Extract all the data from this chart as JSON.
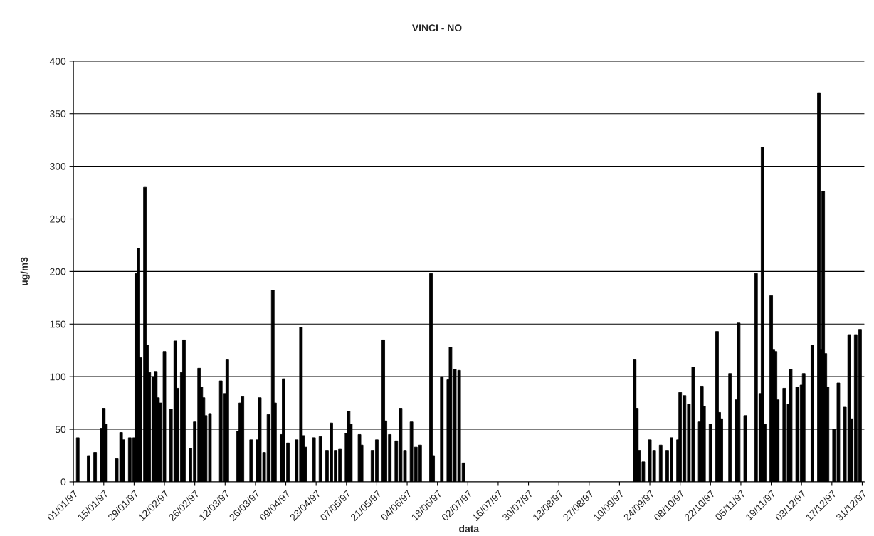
{
  "chart_data": {
    "type": "bar",
    "title": "VINCI - NO",
    "xlabel": "data",
    "ylabel": "ug/m3",
    "x": [
      "1997-01-03",
      "1997-01-08",
      "1997-01-11",
      "1997-01-14",
      "1997-01-15",
      "1997-01-16",
      "1997-01-21",
      "1997-01-23",
      "1997-01-24",
      "1997-01-27",
      "1997-01-29",
      "1997-01-30",
      "1997-01-31",
      "1997-02-01",
      "1997-02-03",
      "1997-02-04",
      "1997-02-05",
      "1997-02-07",
      "1997-02-08",
      "1997-02-09",
      "1997-02-10",
      "1997-02-12",
      "1997-02-15",
      "1997-02-17",
      "1997-02-18",
      "1997-02-20",
      "1997-02-21",
      "1997-02-24",
      "1997-02-26",
      "1997-02-28",
      "1997-03-01",
      "1997-03-02",
      "1997-03-03",
      "1997-03-05",
      "1997-03-10",
      "1997-03-12",
      "1997-03-13",
      "1997-03-18",
      "1997-03-19",
      "1997-03-20",
      "1997-03-24",
      "1997-03-27",
      "1997-03-28",
      "1997-03-30",
      "1997-04-01",
      "1997-04-03",
      "1997-04-04",
      "1997-04-07",
      "1997-04-08",
      "1997-04-10",
      "1997-04-14",
      "1997-04-16",
      "1997-04-17",
      "1997-04-18",
      "1997-04-22",
      "1997-04-25",
      "1997-04-28",
      "1997-04-30",
      "1997-05-02",
      "1997-05-04",
      "1997-05-07",
      "1997-05-08",
      "1997-05-09",
      "1997-05-13",
      "1997-05-14",
      "1997-05-19",
      "1997-05-21",
      "1997-05-24",
      "1997-05-25",
      "1997-05-27",
      "1997-05-30",
      "1997-06-01",
      "1997-06-03",
      "1997-06-06",
      "1997-06-08",
      "1997-06-10",
      "1997-06-15",
      "1997-06-16",
      "1997-06-20",
      "1997-06-23",
      "1997-06-24",
      "1997-06-26",
      "1997-06-28",
      "1997-06-30",
      "1997-09-17",
      "1997-09-18",
      "1997-09-19",
      "1997-09-21",
      "1997-09-24",
      "1997-09-26",
      "1997-09-29",
      "1997-10-02",
      "1997-10-04",
      "1997-10-07",
      "1997-10-08",
      "1997-10-10",
      "1997-10-12",
      "1997-10-14",
      "1997-10-17",
      "1997-10-18",
      "1997-10-19",
      "1997-10-22",
      "1997-10-25",
      "1997-10-26",
      "1997-10-27",
      "1997-10-31",
      "1997-11-03",
      "1997-11-04",
      "1997-11-07",
      "1997-11-12",
      "1997-11-14",
      "1997-11-15",
      "1997-11-16",
      "1997-11-19",
      "1997-11-20",
      "1997-11-21",
      "1997-11-22",
      "1997-11-25",
      "1997-11-27",
      "1997-11-28",
      "1997-12-01",
      "1997-12-03",
      "1997-12-04",
      "1997-12-08",
      "1997-12-11",
      "1997-12-12",
      "1997-12-13",
      "1997-12-14",
      "1997-12-15",
      "1997-12-18",
      "1997-12-20",
      "1997-12-23",
      "1997-12-25",
      "1997-12-26",
      "1997-12-28",
      "1997-12-30"
    ],
    "values": [
      42,
      25,
      28,
      51,
      70,
      55,
      22,
      47,
      40,
      42,
      42,
      198,
      222,
      118,
      280,
      130,
      104,
      100,
      105,
      80,
      75,
      124,
      69,
      134,
      89,
      104,
      135,
      32,
      57,
      108,
      90,
      80,
      63,
      65,
      96,
      84,
      116,
      48,
      75,
      81,
      40,
      40,
      80,
      28,
      64,
      182,
      75,
      45,
      98,
      37,
      40,
      147,
      44,
      33,
      42,
      43,
      30,
      56,
      30,
      31,
      46,
      67,
      55,
      45,
      35,
      30,
      40,
      135,
      58,
      45,
      39,
      70,
      30,
      57,
      33,
      35,
      198,
      25,
      100,
      97,
      128,
      107,
      106,
      18,
      116,
      70,
      30,
      19,
      40,
      30,
      35,
      30,
      42,
      40,
      85,
      82,
      74,
      109,
      57,
      91,
      72,
      55,
      143,
      66,
      60,
      103,
      78,
      151,
      63,
      198,
      84,
      318,
      55,
      177,
      126,
      124,
      78,
      89,
      74,
      107,
      90,
      92,
      103,
      130,
      370,
      126,
      276,
      122,
      90,
      50,
      94,
      71,
      140,
      60,
      140,
      145
    ],
    "color": "#000000",
    "xlim": [
      "1997-01-01",
      "1998-01-01"
    ],
    "xticks": [
      {
        "value": "1997-01-01",
        "label": "01/01/97"
      },
      {
        "value": "1997-01-15",
        "label": "15/01/97"
      },
      {
        "value": "1997-01-29",
        "label": "29/01/97"
      },
      {
        "value": "1997-02-12",
        "label": "12/02/97"
      },
      {
        "value": "1997-02-26",
        "label": "26/02/97"
      },
      {
        "value": "1997-03-12",
        "label": "12/03/97"
      },
      {
        "value": "1997-03-26",
        "label": "26/03/97"
      },
      {
        "value": "1997-04-09",
        "label": "09/04/97"
      },
      {
        "value": "1997-04-23",
        "label": "23/04/97"
      },
      {
        "value": "1997-05-07",
        "label": "07/05/97"
      },
      {
        "value": "1997-05-21",
        "label": "21/05/97"
      },
      {
        "value": "1997-06-04",
        "label": "04/06/97"
      },
      {
        "value": "1997-06-18",
        "label": "18/06/97"
      },
      {
        "value": "1997-07-02",
        "label": "02/07/97"
      },
      {
        "value": "1997-07-16",
        "label": "16/07/97"
      },
      {
        "value": "1997-07-30",
        "label": "30/07/97"
      },
      {
        "value": "1997-08-13",
        "label": "13/08/97"
      },
      {
        "value": "1997-08-27",
        "label": "27/08/97"
      },
      {
        "value": "1997-09-10",
        "label": "10/09/97"
      },
      {
        "value": "1997-09-24",
        "label": "24/09/97"
      },
      {
        "value": "1997-10-08",
        "label": "08/10/97"
      },
      {
        "value": "1997-10-22",
        "label": "22/10/97"
      },
      {
        "value": "1997-11-05",
        "label": "05/11/97"
      },
      {
        "value": "1997-11-19",
        "label": "19/11/97"
      },
      {
        "value": "1997-12-03",
        "label": "03/12/97"
      },
      {
        "value": "1997-12-17",
        "label": "17/12/97"
      },
      {
        "value": "1997-12-31",
        "label": "31/12/97"
      }
    ],
    "ylim": [
      0,
      400
    ],
    "yticks": [
      0,
      50,
      100,
      150,
      200,
      250,
      300,
      350,
      400
    ],
    "grid": "y"
  }
}
